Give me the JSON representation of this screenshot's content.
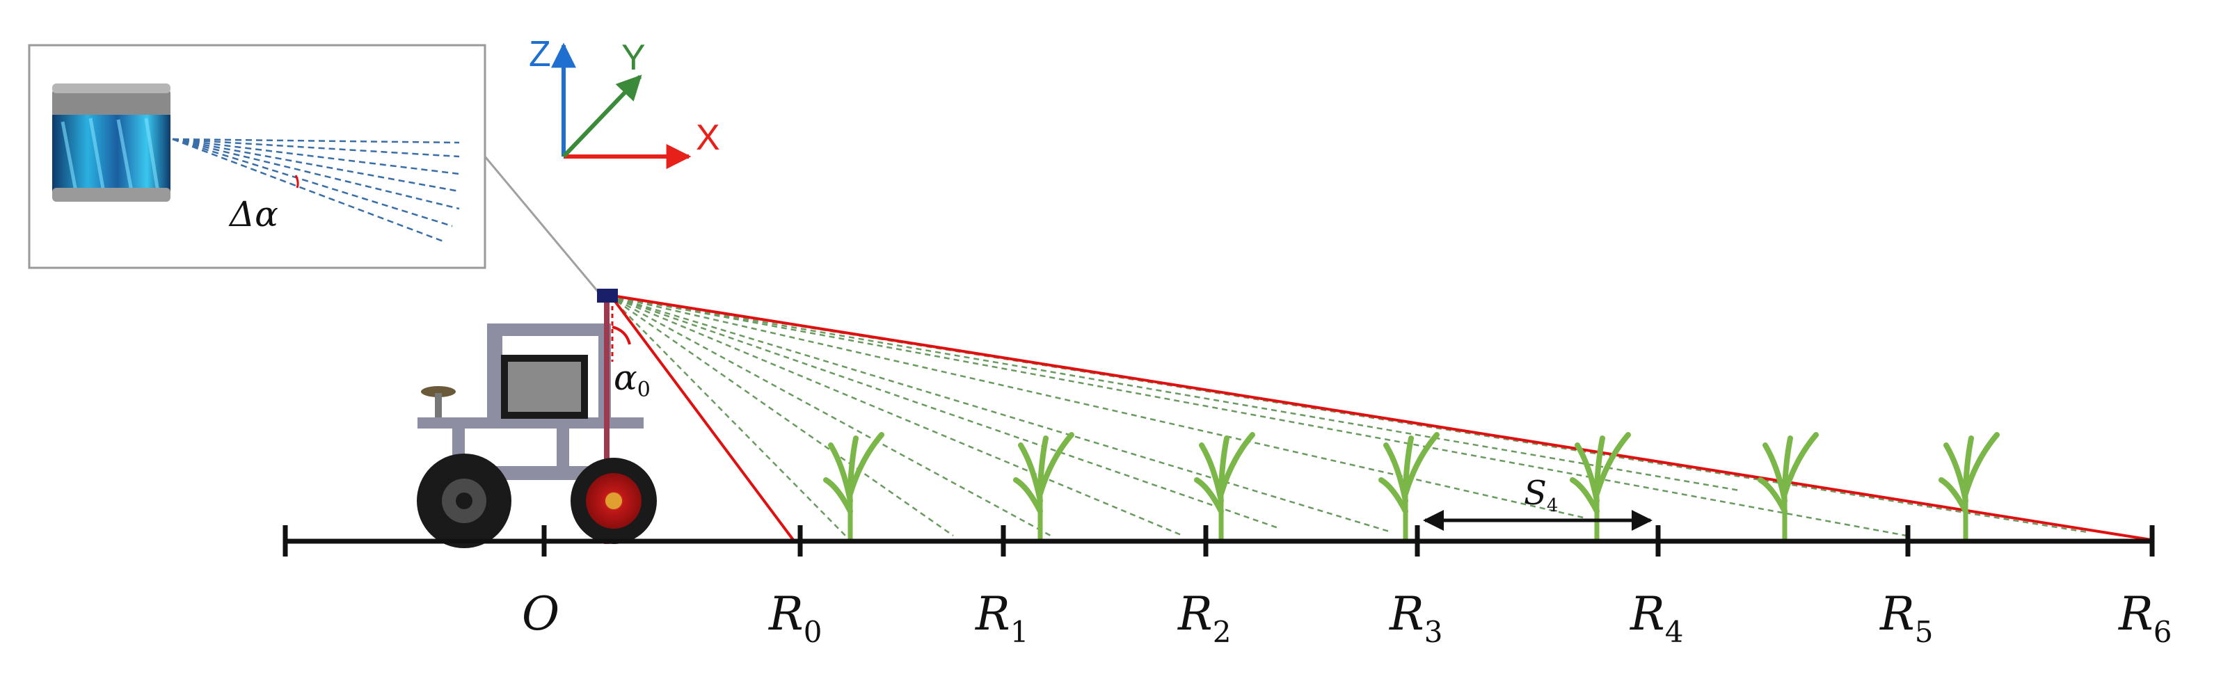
{
  "axis_labels": {
    "origin": "O",
    "points": [
      {
        "letter": "R",
        "sub": "0"
      },
      {
        "letter": "R",
        "sub": "1"
      },
      {
        "letter": "R",
        "sub": "2"
      },
      {
        "letter": "R",
        "sub": "3"
      },
      {
        "letter": "R",
        "sub": "4"
      },
      {
        "letter": "R",
        "sub": "5"
      },
      {
        "letter": "R",
        "sub": "6"
      }
    ]
  },
  "spacing_label": {
    "letter": "S",
    "sub": "4"
  },
  "angle_label": {
    "symbol": "α",
    "sub": "0"
  },
  "inset_label": "Δα",
  "coordinate_axes": {
    "x": "X",
    "y": "Y",
    "z": "Z"
  },
  "colors": {
    "x_axis": "#e8201a",
    "y_axis": "#3a8a3a",
    "z_axis": "#1f6fd1",
    "laser_red": "#e01010",
    "laser_green": "#6a9a60",
    "plant": "#7ab648",
    "ground": "#111111"
  },
  "icons": [
    "lidar-sensor-icon",
    "robot-vehicle-icon",
    "crop-plant-icon"
  ]
}
